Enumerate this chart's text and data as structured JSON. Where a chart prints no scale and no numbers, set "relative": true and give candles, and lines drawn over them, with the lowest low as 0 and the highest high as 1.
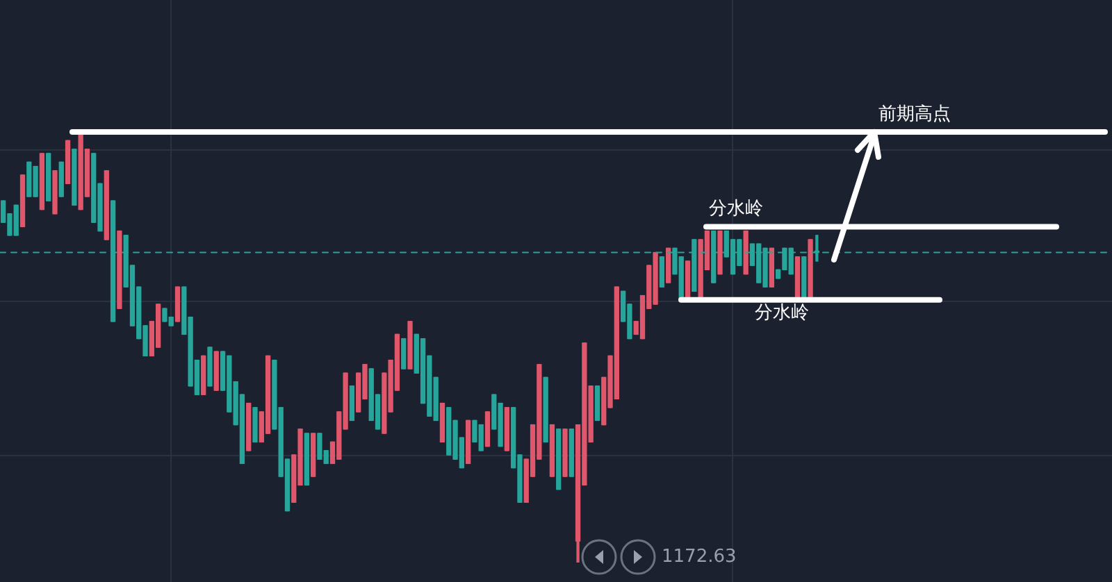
{
  "chart_data": {
    "type": "candlestick",
    "relative": true,
    "grid": true,
    "categories": [
      null,
      null,
      null,
      null,
      null,
      null,
      null,
      null,
      null,
      null,
      null,
      null,
      null,
      null,
      null,
      null,
      null,
      null,
      null,
      null,
      null,
      null,
      null,
      null,
      null,
      null,
      null,
      null,
      null,
      null,
      null,
      null,
      null,
      null,
      null,
      null,
      null,
      null,
      null,
      null,
      null,
      null,
      null,
      null,
      null,
      null,
      null,
      null,
      null,
      null,
      null,
      null,
      null,
      null,
      null,
      null,
      null,
      null,
      null,
      null,
      null,
      null,
      null,
      null,
      null,
      null,
      null,
      null,
      null,
      null,
      null,
      null,
      null,
      null,
      null,
      null,
      null,
      null,
      null,
      null,
      null,
      null,
      null,
      null,
      null,
      null,
      null,
      null,
      null,
      null,
      null,
      null,
      null,
      null,
      null,
      null,
      null,
      null,
      null,
      null,
      null,
      null,
      null,
      null,
      null,
      null,
      null,
      null,
      null,
      null,
      null,
      null,
      null,
      null,
      null,
      null,
      null,
      null,
      null,
      null,
      null,
      null,
      null,
      null,
      null,
      null,
      null
    ],
    "ohlc": [
      [
        0.84,
        0.84,
        0.79,
        0.79
      ],
      [
        0.81,
        0.81,
        0.76,
        0.76
      ],
      [
        0.83,
        0.83,
        0.76,
        0.76
      ],
      [
        0.78,
        0.9,
        0.78,
        0.9
      ],
      [
        0.93,
        0.93,
        0.85,
        0.85
      ],
      [
        0.92,
        0.92,
        0.85,
        0.85
      ],
      [
        0.82,
        0.95,
        0.82,
        0.95
      ],
      [
        0.95,
        0.95,
        0.84,
        0.84
      ],
      [
        0.81,
        0.91,
        0.81,
        0.91
      ],
      [
        0.93,
        0.93,
        0.85,
        0.85
      ],
      [
        0.88,
        0.98,
        0.88,
        0.98
      ],
      [
        0.96,
        0.96,
        0.83,
        0.83
      ],
      [
        0.82,
        1,
        0.82,
        1
      ],
      [
        0.85,
        0.96,
        0.85,
        0.96
      ],
      [
        0.95,
        0.95,
        0.79,
        0.79
      ],
      [
        0.88,
        0.88,
        0.77,
        0.77
      ],
      [
        0.75,
        0.91,
        0.75,
        0.91
      ],
      [
        0.84,
        0.84,
        0.56,
        0.56
      ],
      [
        0.59,
        0.77,
        0.59,
        0.77
      ],
      [
        0.76,
        0.76,
        0.64,
        0.64
      ],
      [
        0.69,
        0.69,
        0.55,
        0.55
      ],
      [
        0.64,
        0.64,
        0.52,
        0.52
      ],
      [
        0.55,
        0.55,
        0.48,
        0.48
      ],
      [
        0.48,
        0.56,
        0.48,
        0.56
      ],
      [
        0.5,
        0.6,
        0.5,
        0.6
      ],
      [
        0.59,
        0.59,
        0.56,
        0.56
      ],
      [
        0.57,
        0.57,
        0.55,
        0.55
      ],
      [
        0.56,
        0.64,
        0.56,
        0.64
      ],
      [
        0.64,
        0.64,
        0.53,
        0.53
      ],
      [
        0.57,
        0.57,
        0.41,
        0.41
      ],
      [
        0.47,
        0.47,
        0.39,
        0.39
      ],
      [
        0.39,
        0.48,
        0.39,
        0.48
      ],
      [
        0.5,
        0.5,
        0.41,
        0.41
      ],
      [
        0.4,
        0.49,
        0.4,
        0.49
      ],
      [
        0.49,
        0.49,
        0.4,
        0.4
      ],
      [
        0.48,
        0.48,
        0.35,
        0.35
      ],
      [
        0.42,
        0.42,
        0.32,
        0.32
      ],
      [
        0.39,
        0.39,
        0.23,
        0.23
      ],
      [
        0.26,
        0.37,
        0.26,
        0.37
      ],
      [
        0.36,
        0.36,
        0.28,
        0.28
      ],
      [
        0.28,
        0.35,
        0.28,
        0.35
      ],
      [
        0.3,
        0.48,
        0.3,
        0.48
      ],
      [
        0.47,
        0.47,
        0.31,
        0.31
      ],
      [
        0.36,
        0.36,
        0.2,
        0.2
      ],
      [
        0.24,
        0.24,
        0.12,
        0.12
      ],
      [
        0.14,
        0.25,
        0.14,
        0.25
      ],
      [
        0.18,
        0.31,
        0.18,
        0.31
      ],
      [
        0.3,
        0.3,
        0.18,
        0.18
      ],
      [
        0.2,
        0.3,
        0.2,
        0.3
      ],
      [
        0.3,
        0.3,
        0.24,
        0.24
      ],
      [
        0.26,
        0.26,
        0.23,
        0.23
      ],
      [
        0.23,
        0.28,
        0.23,
        0.28
      ],
      [
        0.24,
        0.35,
        0.24,
        0.35
      ],
      [
        0.31,
        0.44,
        0.31,
        0.44
      ],
      [
        0.41,
        0.41,
        0.33,
        0.33
      ],
      [
        0.35,
        0.44,
        0.35,
        0.44
      ],
      [
        0.38,
        0.46,
        0.38,
        0.46
      ],
      [
        0.45,
        0.45,
        0.33,
        0.33
      ],
      [
        0.39,
        0.39,
        0.31,
        0.31
      ],
      [
        0.3,
        0.44,
        0.3,
        0.44
      ],
      [
        0.35,
        0.47,
        0.35,
        0.47
      ],
      [
        0.4,
        0.53,
        0.4,
        0.53
      ],
      [
        0.52,
        0.52,
        0.45,
        0.45
      ],
      [
        0.45,
        0.56,
        0.45,
        0.56
      ],
      [
        0.53,
        0.53,
        0.44,
        0.44
      ],
      [
        0.52,
        0.52,
        0.37,
        0.37
      ],
      [
        0.48,
        0.48,
        0.34,
        0.34
      ],
      [
        0.43,
        0.43,
        0.33,
        0.33
      ],
      [
        0.28,
        0.37,
        0.28,
        0.37
      ],
      [
        0.36,
        0.36,
        0.25,
        0.25
      ],
      [
        0.33,
        0.33,
        0.24,
        0.24
      ],
      [
        0.29,
        0.29,
        0.22,
        0.22
      ],
      [
        0.23,
        0.33,
        0.23,
        0.33
      ],
      [
        0.33,
        0.33,
        0.28,
        0.28
      ],
      [
        0.32,
        0.32,
        0.26,
        0.26
      ],
      [
        0.27,
        0.35,
        0.27,
        0.35
      ],
      [
        0.39,
        0.39,
        0.31,
        0.31
      ],
      [
        0.37,
        0.37,
        0.27,
        0.27
      ],
      [
        0.26,
        0.36,
        0.26,
        0.36
      ],
      [
        0.36,
        0.36,
        0.22,
        0.22
      ],
      [
        0.25,
        0.25,
        0.14,
        0.14
      ],
      [
        0.14,
        0.24,
        0.14,
        0.24
      ],
      [
        0.2,
        0.32,
        0.2,
        0.32
      ],
      [
        0.24,
        0.46,
        0.24,
        0.46
      ],
      [
        0.43,
        0.43,
        0.28,
        0.28
      ],
      [
        0.2,
        0.32,
        0.2,
        0.32
      ],
      [
        0.31,
        0.31,
        0.17,
        0.17
      ],
      [
        0.2,
        0.31,
        0.2,
        0.31
      ],
      [
        0.31,
        0.31,
        0.2,
        0.2
      ],
      [
        0.05,
        0.32,
        0,
        0.32
      ],
      [
        0.18,
        0.51,
        0.18,
        0.51
      ],
      [
        0.28,
        0.41,
        0.28,
        0.41
      ],
      [
        0.41,
        0.41,
        0.33,
        0.33
      ],
      [
        0.32,
        0.43,
        0.32,
        0.43
      ],
      [
        0.36,
        0.48,
        0.36,
        0.48
      ],
      [
        0.38,
        0.64,
        0.38,
        0.64
      ],
      [
        0.63,
        0.63,
        0.56,
        0.56
      ],
      [
        0.6,
        0.6,
        0.52,
        0.52
      ],
      [
        0.53,
        0.56,
        0.53,
        0.56
      ],
      [
        0.52,
        0.62,
        0.52,
        0.62
      ],
      [
        0.59,
        0.69,
        0.59,
        0.69
      ],
      [
        0.6,
        0.72,
        0.6,
        0.72
      ],
      [
        0.71,
        0.71,
        0.64,
        0.64
      ],
      [
        0.65,
        0.73,
        0.65,
        0.73
      ],
      [
        0.73,
        0.73,
        0.67,
        0.67
      ],
      [
        0.71,
        0.71,
        0.61,
        0.61
      ],
      [
        0.61,
        0.7,
        0.61,
        0.7
      ],
      [
        0.75,
        0.75,
        0.63,
        0.63
      ],
      [
        0.61,
        0.75,
        0.61,
        0.75
      ],
      [
        0.68,
        0.77,
        0.68,
        0.77
      ],
      [
        0.77,
        0.77,
        0.65,
        0.65
      ],
      [
        0.67,
        0.77,
        0.67,
        0.77
      ],
      [
        0.77,
        0.77,
        0.71,
        0.71
      ],
      [
        0.75,
        0.75,
        0.67,
        0.67
      ],
      [
        0.75,
        0.75,
        0.69,
        0.69
      ],
      [
        0.67,
        0.77,
        0.67,
        0.77
      ],
      [
        0.74,
        0.74,
        0.69,
        0.69
      ],
      [
        0.74,
        0.74,
        0.65,
        0.65
      ],
      [
        0.73,
        0.73,
        0.64,
        0.64
      ],
      [
        0.64,
        0.73,
        0.64,
        0.73
      ],
      [
        0.68,
        0.68,
        0.66,
        0.66
      ],
      [
        0.73,
        0.73,
        0.68,
        0.68
      ],
      [
        0.73,
        0.73,
        0.67,
        0.67
      ],
      [
        0.61,
        0.71,
        0.61,
        0.71
      ],
      [
        0.71,
        0.71,
        0.61,
        0.61
      ],
      [
        0.61,
        0.75,
        0.61,
        0.75
      ],
      [
        0.72,
        0.76,
        0.7,
        0.72
      ]
    ],
    "colors": [
      "#26a69a",
      "#26a69a",
      "#26a69a",
      "#e0566b",
      "#26a69a",
      "#26a69a",
      "#e0566b",
      "#26a69a",
      "#e0566b",
      "#26a69a",
      "#e0566b",
      "#26a69a",
      "#e0566b",
      "#e0566b",
      "#26a69a",
      "#26a69a",
      "#e0566b",
      "#26a69a",
      "#e0566b",
      "#26a69a",
      "#26a69a",
      "#26a69a",
      "#26a69a",
      "#e0566b",
      "#e0566b",
      "#26a69a",
      "#26a69a",
      "#e0566b",
      "#26a69a",
      "#26a69a",
      "#26a69a",
      "#e0566b",
      "#26a69a",
      "#e0566b",
      "#26a69a",
      "#26a69a",
      "#26a69a",
      "#26a69a",
      "#e0566b",
      "#26a69a",
      "#e0566b",
      "#e0566b",
      "#26a69a",
      "#26a69a",
      "#26a69a",
      "#e0566b",
      "#e0566b",
      "#26a69a",
      "#e0566b",
      "#26a69a",
      "#26a69a",
      "#e0566b",
      "#e0566b",
      "#e0566b",
      "#26a69a",
      "#e0566b",
      "#e0566b",
      "#26a69a",
      "#26a69a",
      "#e0566b",
      "#e0566b",
      "#e0566b",
      "#26a69a",
      "#e0566b",
      "#26a69a",
      "#26a69a",
      "#26a69a",
      "#26a69a",
      "#e0566b",
      "#26a69a",
      "#26a69a",
      "#26a69a",
      "#e0566b",
      "#26a69a",
      "#26a69a",
      "#e0566b",
      "#26a69a",
      "#26a69a",
      "#e0566b",
      "#26a69a",
      "#26a69a",
      "#e0566b",
      "#e0566b",
      "#e0566b",
      "#26a69a",
      "#e0566b",
      "#26a69a",
      "#e0566b",
      "#26a69a",
      "#e0566b",
      "#e0566b",
      "#e0566b",
      "#26a69a",
      "#e0566b",
      "#e0566b",
      "#e0566b",
      "#26a69a",
      "#26a69a",
      "#e0566b",
      "#e0566b",
      "#e0566b",
      "#e0566b",
      "#26a69a",
      "#e0566b",
      "#26a69a",
      "#26a69a",
      "#e0566b",
      "#26a69a",
      "#e0566b",
      "#e0566b",
      "#26a69a",
      "#e0566b",
      "#26a69a",
      "#26a69a",
      "#26a69a",
      "#e0566b",
      "#26a69a",
      "#26a69a",
      "#26a69a",
      "#e0566b",
      "#26a69a",
      "#26a69a",
      "#26a69a",
      "#e0566b",
      "#26a69a",
      "#e0566b",
      "#26a69a"
    ],
    "ref_lines": [
      {
        "axis": "y",
        "value": 1,
        "label": "前期高点",
        "color": "#ffffff"
      },
      {
        "axis": "y",
        "value": 0.78,
        "label": "分水岭",
        "color": "#ffffff"
      },
      {
        "axis": "y",
        "value": 0.61,
        "label": "分水岭",
        "color": "#ffffff"
      },
      {
        "axis": "y",
        "value": 0.72,
        "color": "#26a69a",
        "line_style": "dashed"
      }
    ],
    "annotations": [
      "1172.63"
    ]
  }
}
